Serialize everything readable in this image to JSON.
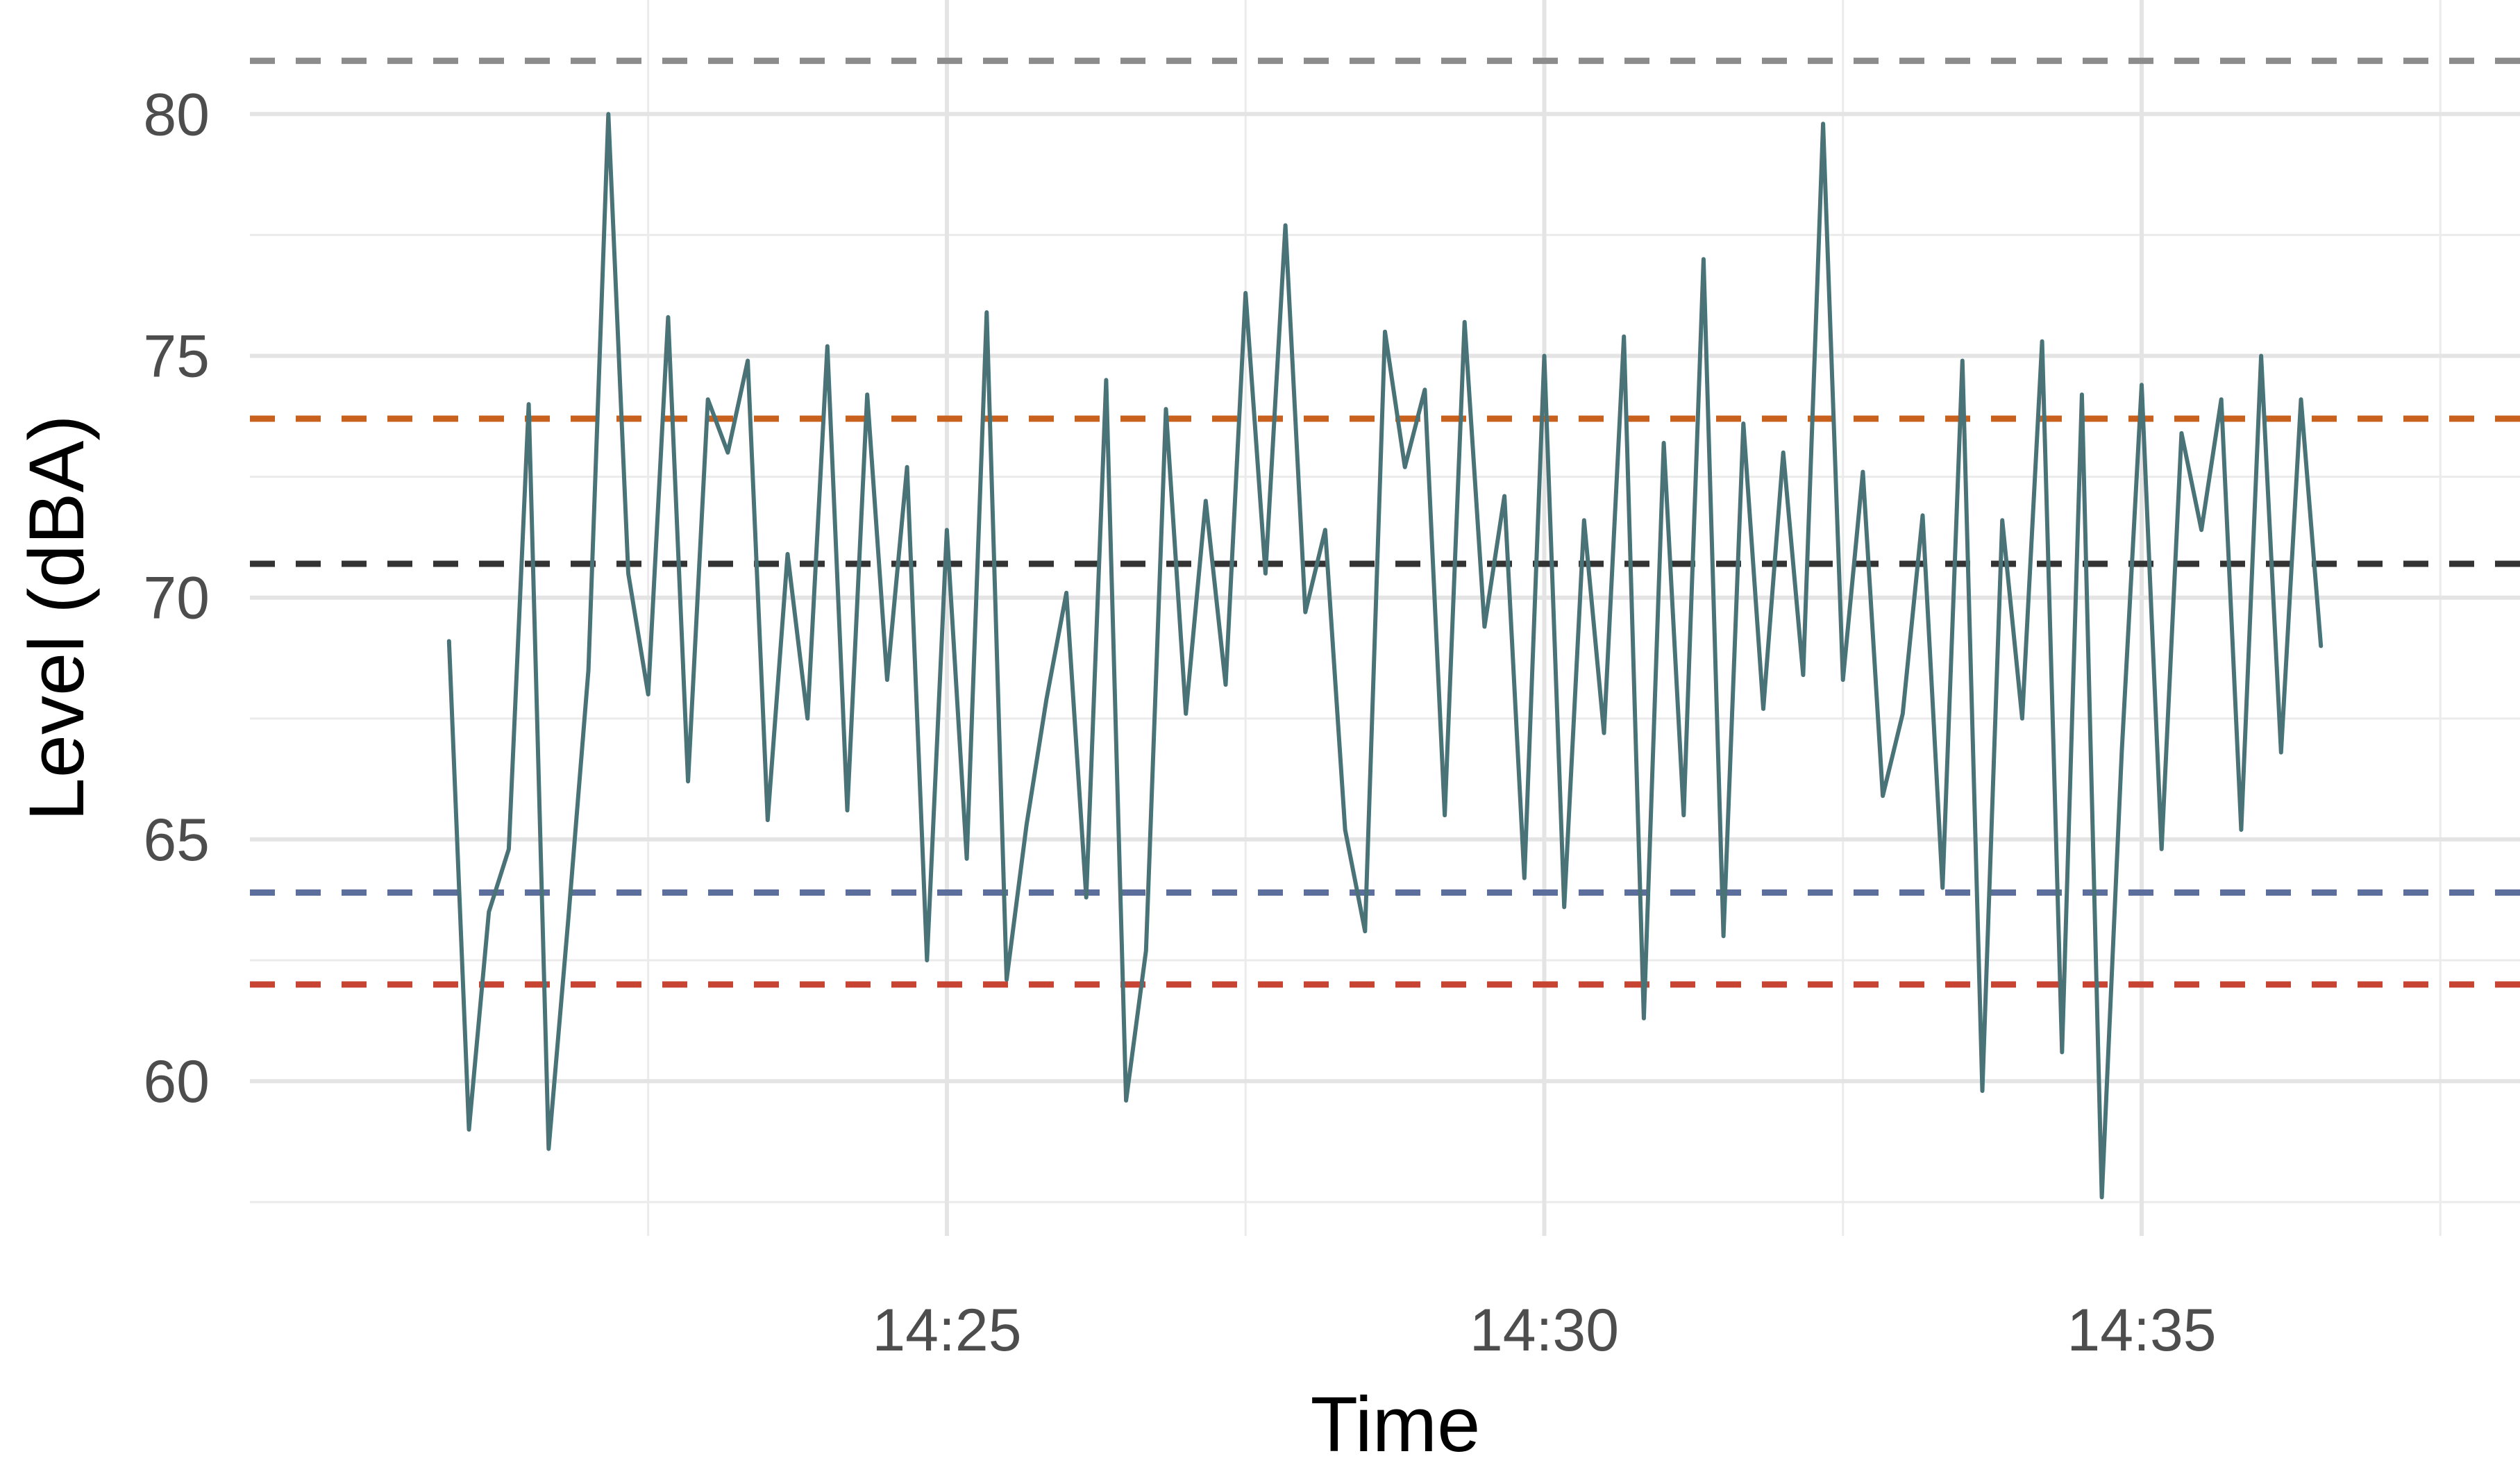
{
  "chart_data": {
    "type": "line",
    "title": "",
    "xlabel": "Time",
    "ylabel": "Level (dBA)",
    "x_tick_labels": [
      "14:25",
      "14:30",
      "14:35"
    ],
    "y_tick_labels": [
      "60",
      "65",
      "70",
      "75",
      "80"
    ],
    "xlim": [
      "14:19:10",
      "14:38:10"
    ],
    "ylim": [
      56.8,
      82.0
    ],
    "x_ticks": [
      "14:25",
      "14:30",
      "14:35"
    ],
    "y_ticks": [
      60,
      65,
      70,
      75,
      80
    ],
    "grid": true,
    "legend": "none",
    "reference_lines": [
      {
        "y": 81.1,
        "color": "#8c8c8c"
      },
      {
        "y": 73.7,
        "color": "#c8611e"
      },
      {
        "y": 70.7,
        "color": "#333333"
      },
      {
        "y": 63.9,
        "color": "#5b6e9c"
      },
      {
        "y": 62.0,
        "color": "#c84432"
      }
    ],
    "series": [
      {
        "color": "#4a7378",
        "x": [
          "14:20:50",
          "14:21:00",
          "14:21:10",
          "14:21:20",
          "14:21:30",
          "14:21:40",
          "14:21:50",
          "14:22:00",
          "14:22:10",
          "14:22:20",
          "14:22:30",
          "14:22:40",
          "14:22:50",
          "14:23:00",
          "14:23:10",
          "14:23:20",
          "14:23:30",
          "14:23:40",
          "14:23:50",
          "14:24:00",
          "14:24:10",
          "14:24:20",
          "14:24:30",
          "14:24:40",
          "14:24:50",
          "14:25:00",
          "14:25:10",
          "14:25:20",
          "14:25:30",
          "14:25:40",
          "14:25:50",
          "14:26:00",
          "14:26:10",
          "14:26:20",
          "14:26:30",
          "14:26:40",
          "14:26:50",
          "14:27:00",
          "14:27:10",
          "14:27:20",
          "14:27:30",
          "14:27:40",
          "14:27:50",
          "14:28:00",
          "14:28:10",
          "14:28:20",
          "14:28:30",
          "14:28:40",
          "14:28:50",
          "14:29:00",
          "14:29:10",
          "14:29:20",
          "14:29:30",
          "14:29:40",
          "14:29:50",
          "14:30:00",
          "14:30:10",
          "14:30:20",
          "14:30:30",
          "14:30:40",
          "14:30:50",
          "14:31:00",
          "14:31:10",
          "14:31:20",
          "14:31:30",
          "14:31:40",
          "14:31:50",
          "14:32:00",
          "14:32:10",
          "14:32:20",
          "14:32:30",
          "14:32:40",
          "14:32:50",
          "14:33:00",
          "14:33:10",
          "14:33:20",
          "14:33:30",
          "14:33:40",
          "14:33:50",
          "14:34:00",
          "14:34:10",
          "14:34:20",
          "14:34:30",
          "14:34:40",
          "14:34:50",
          "14:35:00",
          "14:35:10",
          "14:35:20",
          "14:35:30",
          "14:35:40",
          "14:35:50",
          "14:36:00",
          "14:36:10",
          "14:36:20",
          "14:36:30"
        ],
        "y": [
          69.1,
          59.0,
          63.5,
          64.8,
          74.0,
          58.6,
          63.4,
          68.5,
          80.0,
          70.5,
          68.0,
          75.8,
          66.2,
          74.1,
          73.0,
          74.9,
          65.4,
          70.9,
          67.5,
          75.2,
          65.6,
          74.2,
          68.3,
          72.7,
          62.5,
          71.4,
          64.6,
          75.9,
          62.1,
          65.3,
          67.9,
          70.1,
          63.8,
          74.5,
          59.6,
          62.7,
          73.9,
          67.6,
          72.0,
          68.2,
          76.3,
          70.5,
          77.7,
          69.7,
          71.4,
          65.2,
          63.1,
          75.5,
          72.7,
          74.3,
          65.5,
          75.7,
          69.4,
          72.1,
          64.2,
          75.0,
          63.6,
          71.6,
          67.2,
          75.4,
          61.3,
          73.2,
          65.5,
          77.0,
          63.0,
          73.6,
          67.7,
          73.0,
          68.4,
          79.8,
          68.3,
          72.6,
          65.9,
          67.6,
          71.7,
          64.0,
          74.9,
          59.8,
          71.6,
          67.5,
          75.3,
          60.6,
          74.2,
          57.6,
          66.8,
          74.4,
          64.8,
          73.4,
          71.4,
          74.1,
          65.2,
          75.0,
          66.8,
          74.1,
          69.0
        ]
      }
    ]
  }
}
